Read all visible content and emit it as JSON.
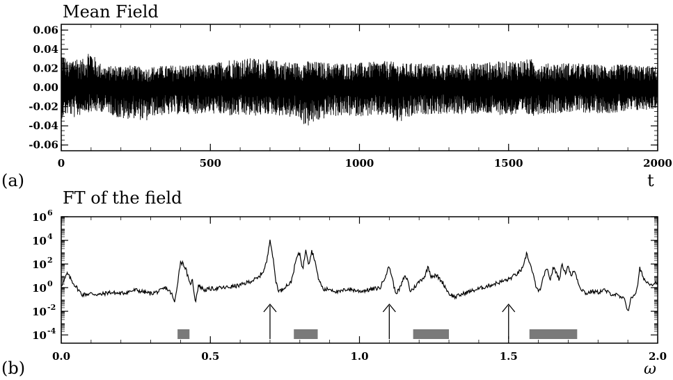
{
  "figure": {
    "panel_a_tag": "(a)",
    "panel_b_tag": "(b)"
  },
  "chart_data": [
    {
      "type": "line",
      "title": "Mean Field",
      "xlabel": "t",
      "ylabel": "",
      "xlim": [
        0,
        2000
      ],
      "ylim": [
        -0.066,
        0.066
      ],
      "x_ticks": [
        0,
        500,
        1000,
        1500,
        2000
      ],
      "x_tick_labels": [
        "0",
        "500",
        "1000",
        "1500",
        "2000"
      ],
      "y_ticks": [
        -0.06,
        -0.04,
        -0.02,
        0.0,
        0.02,
        0.04,
        0.06
      ],
      "y_tick_labels": [
        "-0.06",
        "-0.04",
        "-0.02",
        "0.00",
        "0.02",
        "0.04",
        "0.06"
      ],
      "grid": false,
      "legend": "none",
      "line_color": "#000000",
      "signal": "rapid oscillations about 0, amplitude ~0.02-0.03",
      "series": [
        {
          "x": [
            0,
            10,
            25,
            45,
            60,
            75,
            95,
            120,
            150,
            200,
            240,
            290,
            300,
            400,
            500,
            560,
            650,
            700,
            800,
            820,
            900,
            1000,
            1100,
            1130,
            1200,
            1300,
            1400,
            1500,
            1580,
            1600,
            1700,
            1800,
            1900,
            2000
          ],
          "envelope_max": [
            0.04,
            0.035,
            0.025,
            0.035,
            0.03,
            0.03,
            0.042,
            0.028,
            0.022,
            0.024,
            0.023,
            0.02,
            0.022,
            0.024,
            0.024,
            0.03,
            0.031,
            0.029,
            0.026,
            0.028,
            0.026,
            0.026,
            0.028,
            0.025,
            0.026,
            0.024,
            0.026,
            0.028,
            0.03,
            0.025,
            0.026,
            0.024,
            0.024,
            0.022
          ],
          "envelope_min": [
            -0.033,
            -0.03,
            -0.028,
            -0.032,
            -0.03,
            -0.025,
            -0.026,
            -0.026,
            -0.025,
            -0.034,
            -0.032,
            -0.036,
            -0.03,
            -0.028,
            -0.027,
            -0.03,
            -0.03,
            -0.028,
            -0.033,
            -0.042,
            -0.03,
            -0.03,
            -0.03,
            -0.038,
            -0.028,
            -0.028,
            -0.028,
            -0.029,
            -0.03,
            -0.028,
            -0.026,
            -0.027,
            -0.026,
            -0.022
          ]
        }
      ]
    },
    {
      "type": "line",
      "title": "FT of the field",
      "xlabel": "ω",
      "ylabel": "",
      "xlim": [
        0.0,
        2.0
      ],
      "ylim_log10": [
        -4.7,
        6.0
      ],
      "log_scale_y": true,
      "x_ticks": [
        0.0,
        0.5,
        1.0,
        1.5,
        2.0
      ],
      "x_tick_labels": [
        "0.0",
        "0.5",
        "1.0",
        "1.5",
        "2.0"
      ],
      "y_tick_exponents": [
        -4,
        -2,
        0,
        2,
        4,
        6
      ],
      "y_tick_labels": [
        "10",
        "10",
        "10",
        "10",
        "10",
        "10"
      ],
      "y_tick_superscripts": [
        "-4",
        "-2",
        "0",
        "2",
        "4",
        "6"
      ],
      "grid": false,
      "legend": "none",
      "line_color": "#000000",
      "series": [
        {
          "x": [
            0.0,
            0.01,
            0.02,
            0.04,
            0.07,
            0.1,
            0.13,
            0.16,
            0.2,
            0.25,
            0.3,
            0.33,
            0.35,
            0.37,
            0.38,
            0.39,
            0.4,
            0.41,
            0.42,
            0.43,
            0.44,
            0.45,
            0.46,
            0.48,
            0.5,
            0.55,
            0.6,
            0.63,
            0.66,
            0.68,
            0.69,
            0.7,
            0.71,
            0.72,
            0.73,
            0.74,
            0.75,
            0.77,
            0.78,
            0.79,
            0.8,
            0.81,
            0.82,
            0.83,
            0.84,
            0.85,
            0.86,
            0.87,
            0.88,
            0.9,
            0.93,
            0.96,
            1.0,
            1.03,
            1.07,
            1.09,
            1.1,
            1.11,
            1.12,
            1.13,
            1.14,
            1.15,
            1.16,
            1.17,
            1.18,
            1.2,
            1.22,
            1.23,
            1.24,
            1.26,
            1.28,
            1.3,
            1.32,
            1.34,
            1.36,
            1.4,
            1.45,
            1.5,
            1.53,
            1.55,
            1.56,
            1.57,
            1.58,
            1.59,
            1.6,
            1.61,
            1.62,
            1.63,
            1.64,
            1.65,
            1.66,
            1.67,
            1.68,
            1.69,
            1.7,
            1.71,
            1.72,
            1.74,
            1.76,
            1.78,
            1.8,
            1.82,
            1.84,
            1.86,
            1.88,
            1.89,
            1.9,
            1.91,
            1.92,
            1.93,
            1.94,
            1.95,
            1.96,
            1.98,
            2.0
          ],
          "log10_y": [
            0.2,
            0.6,
            1.2,
            0.4,
            -0.6,
            -0.5,
            -0.6,
            -0.4,
            -0.5,
            -0.2,
            -0.5,
            -0.3,
            0.0,
            -0.5,
            -1.3,
            0.4,
            2.2,
            2.0,
            1.4,
            0.3,
            0.6,
            -1.2,
            0.2,
            -0.2,
            -0.1,
            0.0,
            0.2,
            0.5,
            0.8,
            1.5,
            2.3,
            4.2,
            2.5,
            0.5,
            -0.3,
            -0.2,
            0.1,
            0.4,
            1.5,
            2.6,
            2.9,
            1.5,
            3.3,
            2.0,
            3.1,
            2.4,
            1.0,
            0.3,
            -0.2,
            -0.1,
            -0.4,
            -0.1,
            -0.3,
            -0.2,
            0.0,
            1.2,
            1.8,
            0.8,
            -0.4,
            -0.3,
            0.2,
            0.9,
            0.8,
            -0.3,
            -0.1,
            0.5,
            1.0,
            1.8,
            1.0,
            1.0,
            0.4,
            -0.5,
            -0.8,
            -0.6,
            -0.4,
            -0.1,
            0.3,
            0.7,
            1.2,
            1.7,
            2.9,
            2.2,
            1.3,
            0.3,
            -0.4,
            0.1,
            1.2,
            1.5,
            0.7,
            1.7,
            1.3,
            0.7,
            2.0,
            1.2,
            1.9,
            0.9,
            1.5,
            0.0,
            -0.5,
            -0.3,
            -0.4,
            -0.2,
            -0.5,
            -0.6,
            -0.9,
            -1.0,
            -2.0,
            -1.0,
            -0.6,
            -0.3,
            1.6,
            1.0,
            0.5,
            0.3,
            0.5
          ]
        }
      ],
      "arrows_at_x": [
        0.7,
        1.1,
        1.5
      ],
      "shaded_bands": [
        [
          0.39,
          0.43
        ],
        [
          0.78,
          0.86
        ],
        [
          1.18,
          1.3
        ],
        [
          1.57,
          1.73
        ]
      ],
      "shaded_band_color": "#7a7a7a"
    }
  ]
}
